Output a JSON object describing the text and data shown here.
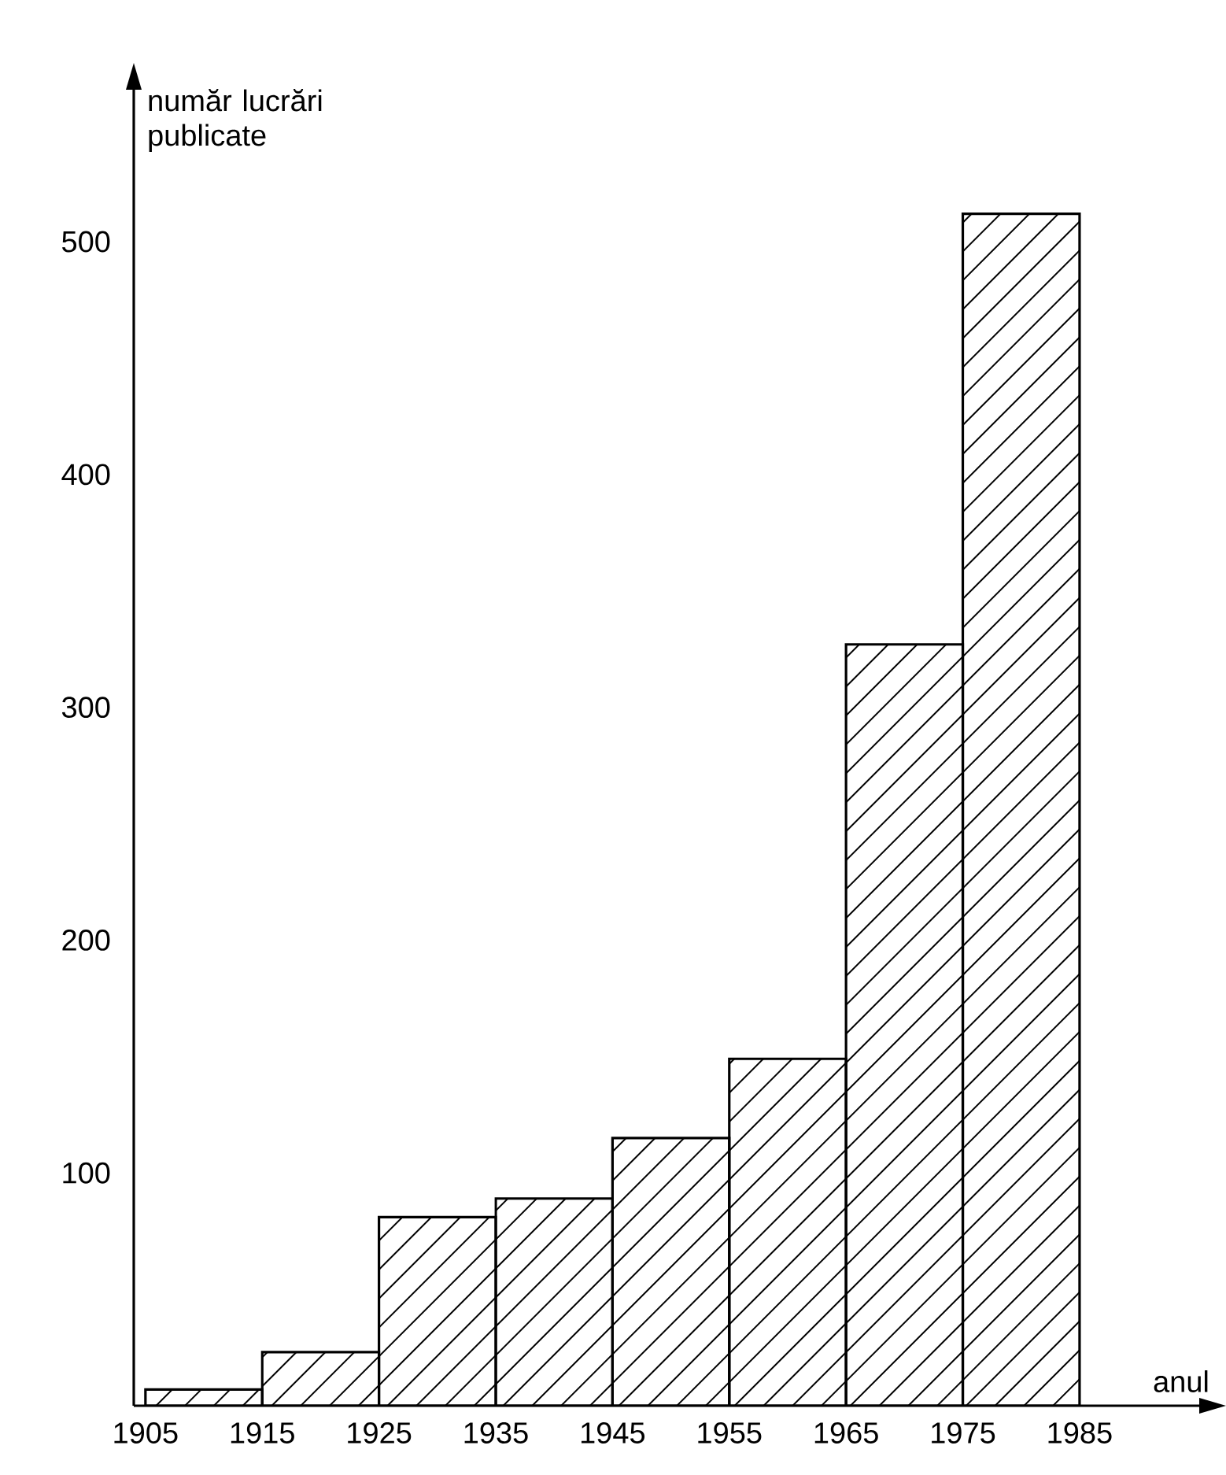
{
  "chart_data": {
    "type": "histogram",
    "xlabel": "anul",
    "ylabel": "număr lucrări publicate",
    "bins": [
      1905,
      1915,
      1925,
      1935,
      1945,
      1955,
      1965,
      1975,
      1985
    ],
    "values": [
      7,
      23,
      81,
      89,
      115,
      149,
      327,
      512
    ],
    "color": "#000000",
    "xlim": [
      1904,
      1997
    ],
    "ylim": [
      0,
      570
    ],
    "xticks": [
      1905,
      1915,
      1925,
      1935,
      1945,
      1955,
      1965,
      1975,
      1985
    ],
    "yticks": [
      100,
      200,
      300,
      400,
      500
    ]
  }
}
